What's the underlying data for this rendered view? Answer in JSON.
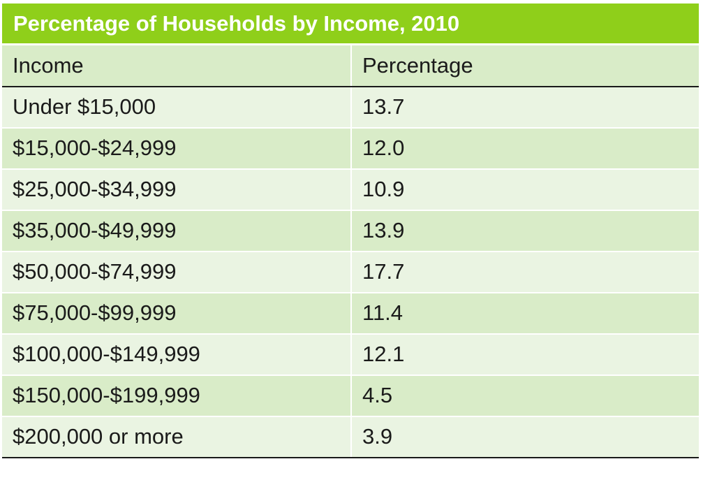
{
  "chart_data": {
    "type": "table",
    "title": "Percentage of Households by Income, 2010",
    "columns": [
      "Income",
      "Percentage"
    ],
    "rows": [
      {
        "income": "Under $15,000",
        "percentage": "13.7"
      },
      {
        "income": "$15,000-$24,999",
        "percentage": "12.0"
      },
      {
        "income": "$25,000-$34,999",
        "percentage": "10.9"
      },
      {
        "income": "$35,000-$49,999",
        "percentage": "13.9"
      },
      {
        "income": "$50,000-$74,999",
        "percentage": "17.7"
      },
      {
        "income": "$75,000-$99,999",
        "percentage": "11.4"
      },
      {
        "income": "$100,000-$149,999",
        "percentage": "12.1"
      },
      {
        "income": "$150,000-$199,999",
        "percentage": "4.5"
      },
      {
        "income": "$200,000 or more",
        "percentage": "3.9"
      }
    ]
  },
  "colors": {
    "title_background": "#8fcf1a",
    "title_text": "#ffffff",
    "row_light": "#eaf4e2",
    "row_dark": "#d9ecc8",
    "rule": "#1a1a1a"
  }
}
